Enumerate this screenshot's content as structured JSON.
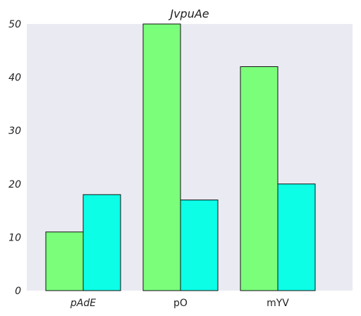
{
  "chart_data": {
    "type": "bar",
    "title": "JvpuAe",
    "xlabel": "",
    "ylabel": "",
    "categories": [
      "pAdE",
      "pO",
      "mYV"
    ],
    "series": [
      {
        "values": [
          11,
          50,
          42
        ]
      },
      {
        "values": [
          18,
          17,
          20
        ]
      }
    ],
    "ylim": [
      0,
      50
    ],
    "yticks": [
      "0",
      "10",
      "20",
      "30",
      "40",
      "50"
    ],
    "grid": false,
    "legend": "none"
  },
  "colors": {
    "plot_background": "#eaeaf2",
    "series": [
      "#7bff7b",
      "#0cffe6"
    ],
    "bar_edge": "#111111"
  }
}
